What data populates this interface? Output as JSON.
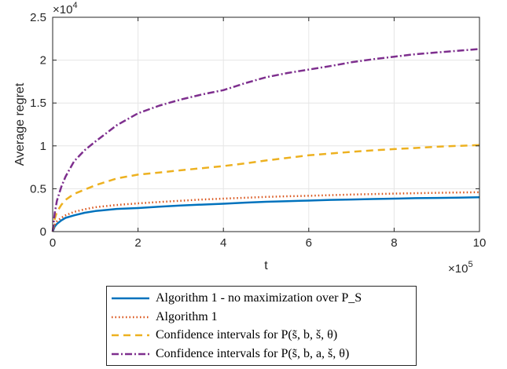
{
  "chart_data": {
    "type": "line",
    "xlabel": "t",
    "ylabel": "Average regret",
    "x_exponent_label": "×10",
    "x_exponent": "5",
    "y_exponent_label": "×10",
    "y_exponent": "4",
    "xlim": [
      0,
      10
    ],
    "ylim": [
      0,
      2.5
    ],
    "xticks": [
      0,
      2,
      4,
      6,
      8,
      10
    ],
    "xtick_labels": [
      "0",
      "2",
      "4",
      "6",
      "8",
      "10"
    ],
    "yticks": [
      0,
      0.5,
      1,
      1.5,
      2,
      2.5
    ],
    "ytick_labels": [
      "0",
      "0.5",
      "1",
      "1.5",
      "2",
      "2.5"
    ],
    "grid": true,
    "legend_position": "bottom-outside",
    "series": [
      {
        "name": "Algorithm 1 - no maximization over P_S",
        "color": "#0072BD",
        "style": "solid",
        "x": [
          0,
          0.05,
          0.1,
          0.2,
          0.3,
          0.5,
          0.75,
          1,
          1.5,
          2,
          2.5,
          3,
          3.5,
          4,
          4.5,
          5,
          5.5,
          6,
          6.5,
          7,
          7.5,
          8,
          8.5,
          9,
          9.5,
          10
        ],
        "y": [
          0,
          0.06,
          0.09,
          0.13,
          0.16,
          0.19,
          0.22,
          0.24,
          0.265,
          0.275,
          0.29,
          0.305,
          0.315,
          0.325,
          0.338,
          0.348,
          0.355,
          0.362,
          0.37,
          0.375,
          0.38,
          0.385,
          0.39,
          0.393,
          0.396,
          0.4
        ]
      },
      {
        "name": "Algorithm 1",
        "color": "#D95319",
        "style": "dotted",
        "x": [
          0,
          0.05,
          0.1,
          0.2,
          0.3,
          0.5,
          0.75,
          1,
          1.5,
          2,
          2.5,
          3,
          3.5,
          4,
          4.5,
          5,
          5.5,
          6,
          6.5,
          7,
          7.5,
          8,
          8.5,
          9,
          9.5,
          10
        ],
        "y": [
          0,
          0.08,
          0.12,
          0.16,
          0.19,
          0.23,
          0.26,
          0.285,
          0.31,
          0.33,
          0.345,
          0.36,
          0.375,
          0.385,
          0.395,
          0.405,
          0.412,
          0.418,
          0.425,
          0.432,
          0.438,
          0.443,
          0.448,
          0.452,
          0.456,
          0.46
        ]
      },
      {
        "name": "Confidence intervals for P(s̃, b, š, θ)",
        "color": "#EDB120",
        "style": "dashed",
        "x": [
          0,
          0.05,
          0.1,
          0.2,
          0.3,
          0.5,
          0.75,
          1,
          1.5,
          2,
          2.5,
          3,
          3.5,
          4,
          4.5,
          5,
          5.5,
          6,
          6.5,
          7,
          7.5,
          8,
          8.5,
          9,
          9.5,
          10
        ],
        "y": [
          0,
          0.15,
          0.23,
          0.31,
          0.37,
          0.44,
          0.49,
          0.54,
          0.62,
          0.665,
          0.69,
          0.715,
          0.74,
          0.765,
          0.795,
          0.83,
          0.86,
          0.89,
          0.91,
          0.93,
          0.948,
          0.962,
          0.975,
          0.99,
          1.0,
          1.01
        ]
      },
      {
        "name": "Confidence intervals for P(s̃, b, a, š, θ)",
        "color": "#7E2F8E",
        "style": "dashdot",
        "x": [
          0,
          0.05,
          0.1,
          0.2,
          0.3,
          0.5,
          0.75,
          1,
          1.5,
          2,
          2.5,
          3,
          3.5,
          4,
          4.5,
          5,
          5.5,
          6,
          6.5,
          7,
          7.5,
          8,
          8.5,
          9,
          9.5,
          10
        ],
        "y": [
          0,
          0.22,
          0.36,
          0.52,
          0.64,
          0.82,
          0.95,
          1.05,
          1.24,
          1.38,
          1.47,
          1.54,
          1.6,
          1.65,
          1.73,
          1.8,
          1.85,
          1.89,
          1.93,
          1.975,
          2.01,
          2.04,
          2.07,
          2.09,
          2.11,
          2.13
        ]
      }
    ]
  }
}
